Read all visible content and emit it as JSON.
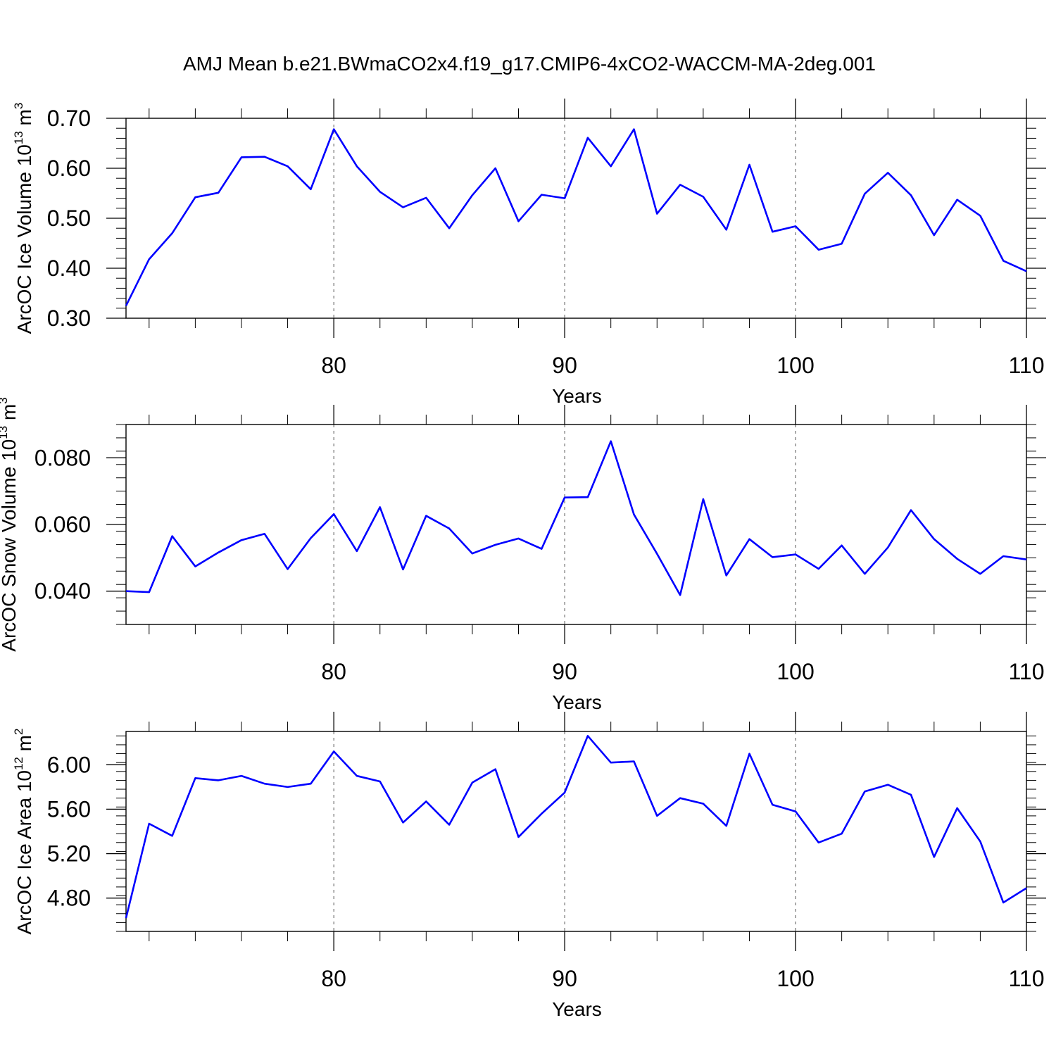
{
  "title": "AMJ Mean b.e21.BWmaCO2x4.f19_g17.CMIP6-4xCO2-WACCM-MA-2deg.001",
  "colors": {
    "series": "#0000ff",
    "axis": "#000000",
    "grid": "#555555"
  },
  "chart_data": [
    {
      "type": "line",
      "ylabel": {
        "main": "ArcOC Ice Volume 10",
        "exp": "13",
        "unit": " m",
        "unit_exp": "3"
      },
      "xlabel": "Years",
      "xlim": [
        71,
        110
      ],
      "ylim": [
        0.3,
        0.7
      ],
      "y_ticks": [
        0.3,
        0.4,
        0.5,
        0.6,
        0.7
      ],
      "y_tick_labels": [
        "0.30",
        "0.40",
        "0.50",
        "0.60",
        "0.70"
      ],
      "y_minor_step": 0.02,
      "x_ticks": [
        80,
        90,
        100,
        110
      ],
      "x_tick_labels": [
        "80",
        "90",
        "100",
        "110"
      ],
      "x_minor_step": 1,
      "x_grid": [
        80,
        90,
        100
      ],
      "series": [
        {
          "x": [
            71,
            72,
            73,
            74,
            75,
            76,
            77,
            78,
            79,
            80,
            81,
            82,
            83,
            84,
            85,
            86,
            87,
            88,
            89,
            90,
            91,
            92,
            93,
            94,
            95,
            96,
            97,
            98,
            99,
            100,
            101,
            102,
            103,
            104,
            105,
            106,
            107,
            108,
            109,
            110
          ],
          "y": [
            0.325,
            0.418,
            0.47,
            0.542,
            0.551,
            0.622,
            0.623,
            0.604,
            0.558,
            0.678,
            0.604,
            0.553,
            0.522,
            0.541,
            0.48,
            0.546,
            0.6,
            0.494,
            0.547,
            0.54,
            0.661,
            0.604,
            0.678,
            0.509,
            0.567,
            0.543,
            0.477,
            0.607,
            0.473,
            0.484,
            0.437,
            0.449,
            0.549,
            0.591,
            0.546,
            0.466,
            0.537,
            0.505,
            0.415,
            0.394
          ]
        }
      ]
    },
    {
      "type": "line",
      "ylabel": {
        "main": "ArcOC Snow Volume 10",
        "exp": "13",
        "unit": " m",
        "unit_exp": "3"
      },
      "xlabel": "Years",
      "xlim": [
        71,
        110
      ],
      "ylim": [
        0.03,
        0.09
      ],
      "y_ticks": [
        0.04,
        0.06,
        0.08
      ],
      "y_tick_labels": [
        "0.040",
        "0.060",
        "0.080"
      ],
      "y_minor_step": 0.004,
      "x_ticks": [
        80,
        90,
        100,
        110
      ],
      "x_tick_labels": [
        "80",
        "90",
        "100",
        "110"
      ],
      "x_minor_step": 1,
      "x_grid": [
        80,
        90,
        100
      ],
      "series": [
        {
          "x": [
            71,
            72,
            73,
            74,
            75,
            76,
            77,
            78,
            79,
            80,
            81,
            82,
            83,
            84,
            85,
            86,
            87,
            88,
            89,
            90,
            91,
            92,
            93,
            94,
            95,
            96,
            97,
            98,
            99,
            100,
            101,
            102,
            103,
            104,
            105,
            106,
            107,
            108,
            109,
            110
          ],
          "y": [
            0.04,
            0.0397,
            0.0565,
            0.0474,
            0.0516,
            0.0553,
            0.0572,
            0.0466,
            0.0559,
            0.0631,
            0.052,
            0.0652,
            0.0465,
            0.0626,
            0.0588,
            0.0513,
            0.0539,
            0.0558,
            0.0527,
            0.0681,
            0.0682,
            0.085,
            0.063,
            0.0512,
            0.0388,
            0.0676,
            0.0447,
            0.0556,
            0.0502,
            0.051,
            0.0467,
            0.0537,
            0.0452,
            0.0531,
            0.0643,
            0.0556,
            0.0497,
            0.0452,
            0.0505,
            0.0495
          ]
        }
      ]
    },
    {
      "type": "line",
      "ylabel": {
        "main": "ArcOC Ice Area 10",
        "exp": "12",
        "unit": " m",
        "unit_exp": "2"
      },
      "xlabel": "Years",
      "xlim": [
        71,
        110
      ],
      "ylim": [
        4.5,
        6.3
      ],
      "y_ticks": [
        4.8,
        5.2,
        5.6,
        6.0
      ],
      "y_tick_labels": [
        "4.80",
        "5.20",
        "5.60",
        "6.00"
      ],
      "y_minor_step": 0.08,
      "x_ticks": [
        80,
        90,
        100,
        110
      ],
      "x_tick_labels": [
        "80",
        "90",
        "100",
        "110"
      ],
      "x_minor_step": 1,
      "x_grid": [
        80,
        90,
        100
      ],
      "series": [
        {
          "x": [
            71,
            72,
            73,
            74,
            75,
            76,
            77,
            78,
            79,
            80,
            81,
            82,
            83,
            84,
            85,
            86,
            87,
            88,
            89,
            90,
            91,
            92,
            93,
            94,
            95,
            96,
            97,
            98,
            99,
            100,
            101,
            102,
            103,
            104,
            105,
            106,
            107,
            108,
            109,
            110
          ],
          "y": [
            4.62,
            5.47,
            5.36,
            5.88,
            5.86,
            5.9,
            5.83,
            5.8,
            5.83,
            6.12,
            5.9,
            5.85,
            5.48,
            5.67,
            5.46,
            5.84,
            5.96,
            5.35,
            5.56,
            5.75,
            6.26,
            6.02,
            6.03,
            5.54,
            5.7,
            5.65,
            5.45,
            6.1,
            5.64,
            5.58,
            5.3,
            5.38,
            5.76,
            5.82,
            5.73,
            5.17,
            5.61,
            5.31,
            4.76,
            4.89
          ]
        }
      ]
    }
  ]
}
